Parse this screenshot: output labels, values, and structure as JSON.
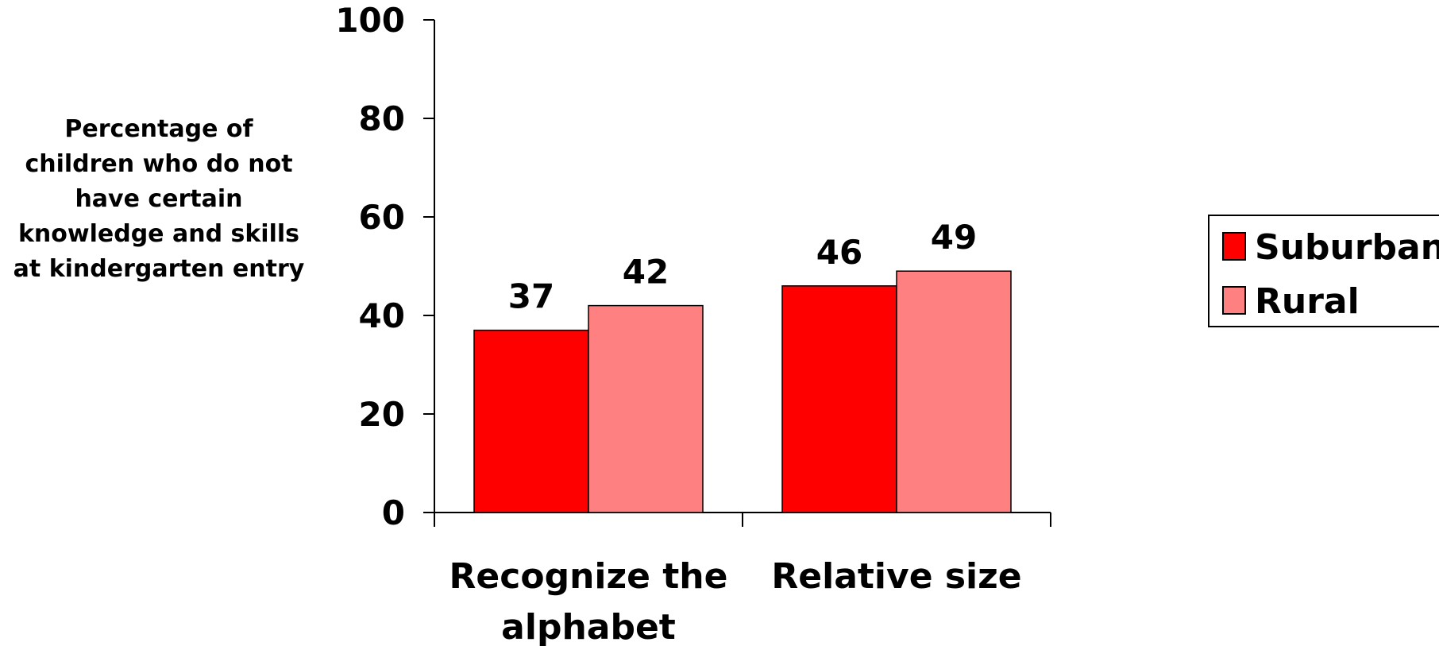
{
  "chart_data": {
    "type": "bar",
    "title": "",
    "xlabel": "",
    "ylabel_lines": [
      "Percentage of",
      "children who do not",
      "have certain",
      "knowledge and skills",
      "at kindergarten entry"
    ],
    "categories": [
      [
        "Recognize the",
        "alphabet"
      ],
      [
        "Relative size"
      ]
    ],
    "series": [
      {
        "name": "Suburban",
        "values": [
          37,
          46
        ],
        "color": "#ff0000"
      },
      {
        "name": "Rural",
        "values": [
          42,
          49
        ],
        "color": "#ff8080"
      }
    ],
    "ylim": [
      0,
      100
    ],
    "yticks": [
      "0",
      "20",
      "40",
      "60",
      "80",
      "100"
    ],
    "grid": false,
    "legend_position": "right"
  }
}
